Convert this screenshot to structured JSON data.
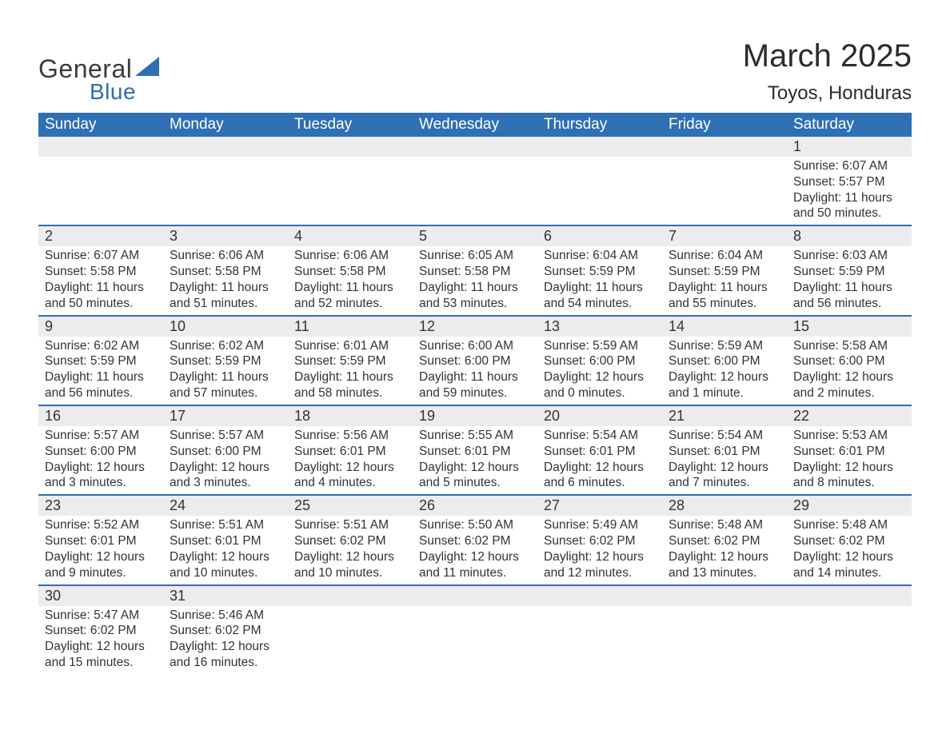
{
  "brand": {
    "word1": "General",
    "word2": "Blue",
    "sail_color": "#2f6fb3",
    "text_color": "#3b3b3b"
  },
  "title": "March 2025",
  "location": "Toyos, Honduras",
  "header_bg": "#2f6fb3",
  "header_fg": "#ffffff",
  "daynum_bg": "#ececec",
  "divider_color": "#2f6fb3",
  "text_color": "#333333",
  "page_bg": "#ffffff",
  "days_of_week": [
    "Sunday",
    "Monday",
    "Tuesday",
    "Wednesday",
    "Thursday",
    "Friday",
    "Saturday"
  ],
  "weeks": [
    [
      null,
      null,
      null,
      null,
      null,
      null,
      {
        "n": "1",
        "sunrise": "6:07 AM",
        "sunset": "5:57 PM",
        "daylight": "11 hours and 50 minutes."
      }
    ],
    [
      {
        "n": "2",
        "sunrise": "6:07 AM",
        "sunset": "5:58 PM",
        "daylight": "11 hours and 50 minutes."
      },
      {
        "n": "3",
        "sunrise": "6:06 AM",
        "sunset": "5:58 PM",
        "daylight": "11 hours and 51 minutes."
      },
      {
        "n": "4",
        "sunrise": "6:06 AM",
        "sunset": "5:58 PM",
        "daylight": "11 hours and 52 minutes."
      },
      {
        "n": "5",
        "sunrise": "6:05 AM",
        "sunset": "5:58 PM",
        "daylight": "11 hours and 53 minutes."
      },
      {
        "n": "6",
        "sunrise": "6:04 AM",
        "sunset": "5:59 PM",
        "daylight": "11 hours and 54 minutes."
      },
      {
        "n": "7",
        "sunrise": "6:04 AM",
        "sunset": "5:59 PM",
        "daylight": "11 hours and 55 minutes."
      },
      {
        "n": "8",
        "sunrise": "6:03 AM",
        "sunset": "5:59 PM",
        "daylight": "11 hours and 56 minutes."
      }
    ],
    [
      {
        "n": "9",
        "sunrise": "6:02 AM",
        "sunset": "5:59 PM",
        "daylight": "11 hours and 56 minutes."
      },
      {
        "n": "10",
        "sunrise": "6:02 AM",
        "sunset": "5:59 PM",
        "daylight": "11 hours and 57 minutes."
      },
      {
        "n": "11",
        "sunrise": "6:01 AM",
        "sunset": "5:59 PM",
        "daylight": "11 hours and 58 minutes."
      },
      {
        "n": "12",
        "sunrise": "6:00 AM",
        "sunset": "6:00 PM",
        "daylight": "11 hours and 59 minutes."
      },
      {
        "n": "13",
        "sunrise": "5:59 AM",
        "sunset": "6:00 PM",
        "daylight": "12 hours and 0 minutes."
      },
      {
        "n": "14",
        "sunrise": "5:59 AM",
        "sunset": "6:00 PM",
        "daylight": "12 hours and 1 minute."
      },
      {
        "n": "15",
        "sunrise": "5:58 AM",
        "sunset": "6:00 PM",
        "daylight": "12 hours and 2 minutes."
      }
    ],
    [
      {
        "n": "16",
        "sunrise": "5:57 AM",
        "sunset": "6:00 PM",
        "daylight": "12 hours and 3 minutes."
      },
      {
        "n": "17",
        "sunrise": "5:57 AM",
        "sunset": "6:00 PM",
        "daylight": "12 hours and 3 minutes."
      },
      {
        "n": "18",
        "sunrise": "5:56 AM",
        "sunset": "6:01 PM",
        "daylight": "12 hours and 4 minutes."
      },
      {
        "n": "19",
        "sunrise": "5:55 AM",
        "sunset": "6:01 PM",
        "daylight": "12 hours and 5 minutes."
      },
      {
        "n": "20",
        "sunrise": "5:54 AM",
        "sunset": "6:01 PM",
        "daylight": "12 hours and 6 minutes."
      },
      {
        "n": "21",
        "sunrise": "5:54 AM",
        "sunset": "6:01 PM",
        "daylight": "12 hours and 7 minutes."
      },
      {
        "n": "22",
        "sunrise": "5:53 AM",
        "sunset": "6:01 PM",
        "daylight": "12 hours and 8 minutes."
      }
    ],
    [
      {
        "n": "23",
        "sunrise": "5:52 AM",
        "sunset": "6:01 PM",
        "daylight": "12 hours and 9 minutes."
      },
      {
        "n": "24",
        "sunrise": "5:51 AM",
        "sunset": "6:01 PM",
        "daylight": "12 hours and 10 minutes."
      },
      {
        "n": "25",
        "sunrise": "5:51 AM",
        "sunset": "6:02 PM",
        "daylight": "12 hours and 10 minutes."
      },
      {
        "n": "26",
        "sunrise": "5:50 AM",
        "sunset": "6:02 PM",
        "daylight": "12 hours and 11 minutes."
      },
      {
        "n": "27",
        "sunrise": "5:49 AM",
        "sunset": "6:02 PM",
        "daylight": "12 hours and 12 minutes."
      },
      {
        "n": "28",
        "sunrise": "5:48 AM",
        "sunset": "6:02 PM",
        "daylight": "12 hours and 13 minutes."
      },
      {
        "n": "29",
        "sunrise": "5:48 AM",
        "sunset": "6:02 PM",
        "daylight": "12 hours and 14 minutes."
      }
    ],
    [
      {
        "n": "30",
        "sunrise": "5:47 AM",
        "sunset": "6:02 PM",
        "daylight": "12 hours and 15 minutes."
      },
      {
        "n": "31",
        "sunrise": "5:46 AM",
        "sunset": "6:02 PM",
        "daylight": "12 hours and 16 minutes."
      },
      null,
      null,
      null,
      null,
      null
    ]
  ],
  "labels": {
    "sunrise_prefix": "Sunrise: ",
    "sunset_prefix": "Sunset: ",
    "daylight_prefix": "Daylight: "
  }
}
